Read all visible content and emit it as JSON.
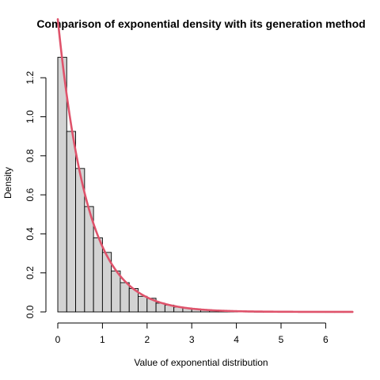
{
  "chart_data": {
    "type": "bar",
    "title": "Comparison of exponential density with its generation method",
    "xlabel": "Value of exponential distribution",
    "ylabel": "Density",
    "xlim": [
      0,
      6.6
    ],
    "ylim": [
      0,
      1.35
    ],
    "x_ticks": [
      "0",
      "1",
      "2",
      "3",
      "4",
      "5",
      "6"
    ],
    "y_ticks": [
      "0.0",
      "0.2",
      "0.4",
      "0.6",
      "0.8",
      "1.0",
      "1.2"
    ],
    "grid": false,
    "bin_width": 0.2,
    "bins": [
      {
        "x0": 0.0,
        "x1": 0.2,
        "density": 1.305
      },
      {
        "x0": 0.2,
        "x1": 0.4,
        "density": 0.925
      },
      {
        "x0": 0.4,
        "x1": 0.6,
        "density": 0.735
      },
      {
        "x0": 0.6,
        "x1": 0.8,
        "density": 0.54
      },
      {
        "x0": 0.8,
        "x1": 1.0,
        "density": 0.38
      },
      {
        "x0": 1.0,
        "x1": 1.2,
        "density": 0.305
      },
      {
        "x0": 1.2,
        "x1": 1.4,
        "density": 0.21
      },
      {
        "x0": 1.4,
        "x1": 1.6,
        "density": 0.15
      },
      {
        "x0": 1.6,
        "x1": 1.8,
        "density": 0.12
      },
      {
        "x0": 1.8,
        "x1": 2.0,
        "density": 0.08
      },
      {
        "x0": 2.0,
        "x1": 2.2,
        "density": 0.07
      },
      {
        "x0": 2.2,
        "x1": 2.4,
        "density": 0.045
      },
      {
        "x0": 2.4,
        "x1": 2.6,
        "density": 0.035
      },
      {
        "x0": 2.6,
        "x1": 2.8,
        "density": 0.025
      },
      {
        "x0": 2.8,
        "x1": 3.0,
        "density": 0.02
      },
      {
        "x0": 3.0,
        "x1": 3.2,
        "density": 0.015
      },
      {
        "x0": 3.2,
        "x1": 3.4,
        "density": 0.01
      },
      {
        "x0": 3.4,
        "x1": 3.6,
        "density": 0.008
      },
      {
        "x0": 3.6,
        "x1": 3.8,
        "density": 0.005
      },
      {
        "x0": 3.8,
        "x1": 4.0,
        "density": 0.004
      },
      {
        "x0": 4.0,
        "x1": 4.2,
        "density": 0.003
      },
      {
        "x0": 4.2,
        "x1": 4.4,
        "density": 0.002
      },
      {
        "x0": 4.4,
        "x1": 4.6,
        "density": 0.0015
      },
      {
        "x0": 4.6,
        "x1": 4.8,
        "density": 0.001
      },
      {
        "x0": 4.8,
        "x1": 5.0,
        "density": 0.0008
      },
      {
        "x0": 5.0,
        "x1": 5.2,
        "density": 0.0005
      },
      {
        "x0": 5.2,
        "x1": 5.4,
        "density": 0.0004
      },
      {
        "x0": 5.4,
        "x1": 5.6,
        "density": 0.0003
      },
      {
        "x0": 5.6,
        "x1": 5.8,
        "density": 0.0002
      },
      {
        "x0": 5.8,
        "x1": 6.0,
        "density": 0.00015
      },
      {
        "x0": 6.0,
        "x1": 6.2,
        "density": 0.0001
      },
      {
        "x0": 6.2,
        "x1": 6.4,
        "density": 0.0001
      },
      {
        "x0": 6.4,
        "x1": 6.6,
        "density": 0.0001
      }
    ],
    "density_curve": {
      "function": "rate * exp(-rate * x)",
      "rate": 1.5,
      "x_range": [
        0,
        6.6
      ]
    },
    "colors": {
      "bar_fill": "#d3d3d3",
      "bar_stroke": "#000000",
      "curve": "#df536b"
    }
  }
}
